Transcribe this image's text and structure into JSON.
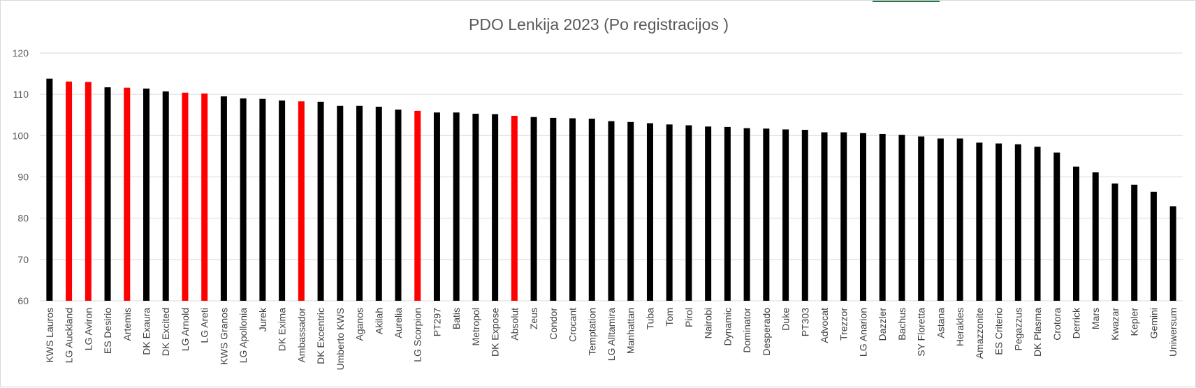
{
  "chart_data": {
    "type": "bar",
    "title": "PDO Lenkija 2023 (Po registracijos )",
    "xlabel": "",
    "ylabel": "",
    "ylim": [
      60,
      120
    ],
    "yticks": [
      60,
      70,
      80,
      90,
      100,
      110,
      120
    ],
    "grid": true,
    "legend": "none",
    "colors": {
      "default": "#000000",
      "highlight": "#ff0000",
      "grid": "#d9d9d9"
    },
    "categories": [
      "KWS Lauros",
      "LG Auckland",
      "LG Aviron",
      "ES Desirio",
      "Artemis",
      "DK Exaura",
      "DK Excited",
      "LG Arnold",
      "LG Areti",
      "KWS Granos",
      "LG Apollonia",
      "Jurek",
      "DK Exima",
      "Ambassador",
      "DK Excentric",
      "Umberto KWS",
      "Aganos",
      "Akilah",
      "Aurelia",
      "LG Scorpion",
      "PT297",
      "Batis",
      "Metropol",
      "DK Expose",
      "Absolut",
      "Zeus",
      "Condor",
      "Crocant",
      "Temptation",
      "LG Alltamira",
      "Manhattan",
      "Tuba",
      "Tom",
      "Pirol",
      "Nairobi",
      "Dynamic",
      "Dominator",
      "Desperado",
      "Duke",
      "PT303",
      "Advocat",
      "Trezzor",
      "LG Anarion",
      "Dazzler",
      "Bachus",
      "SY Floretta",
      "Astana",
      "Herakles",
      "Amazzonite",
      "ES Criterio",
      "Pegazzus",
      "DK Plasma",
      "Crotora",
      "Derrick",
      "Mars",
      "Kwazar",
      "Kepler",
      "Gemini",
      "Uniwersum"
    ],
    "values": [
      113.8,
      113.1,
      113.0,
      111.7,
      111.6,
      111.4,
      110.7,
      110.4,
      110.2,
      109.5,
      109.0,
      108.9,
      108.5,
      108.3,
      108.2,
      107.2,
      107.2,
      107.0,
      106.3,
      106.0,
      105.6,
      105.6,
      105.3,
      105.2,
      104.8,
      104.5,
      104.3,
      104.2,
      104.1,
      103.5,
      103.3,
      103.0,
      102.7,
      102.5,
      102.2,
      102.1,
      101.8,
      101.7,
      101.5,
      101.4,
      100.8,
      100.8,
      100.6,
      100.4,
      100.2,
      99.8,
      99.3,
      99.3,
      98.3,
      98.1,
      97.9,
      97.3,
      95.9,
      92.5,
      91.1,
      88.4,
      88.1,
      86.4,
      82.9
    ],
    "highlighted": [
      false,
      true,
      true,
      false,
      true,
      false,
      false,
      true,
      true,
      false,
      false,
      false,
      false,
      true,
      false,
      false,
      false,
      false,
      false,
      true,
      false,
      false,
      false,
      false,
      true,
      false,
      false,
      false,
      false,
      false,
      false,
      false,
      false,
      false,
      false,
      false,
      false,
      false,
      false,
      false,
      false,
      false,
      false,
      false,
      false,
      false,
      false,
      false,
      false,
      false,
      false,
      false,
      false,
      false,
      false,
      false,
      false,
      false,
      false
    ]
  }
}
